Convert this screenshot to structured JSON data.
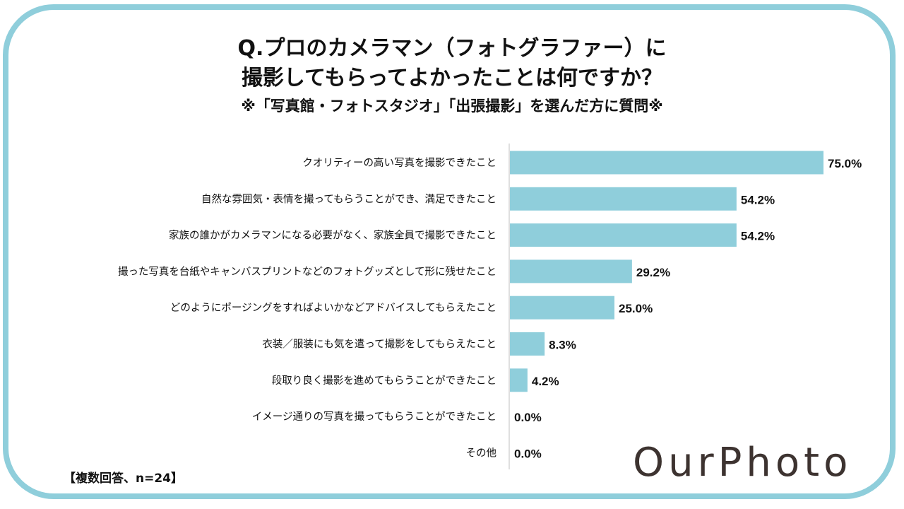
{
  "title_line1": "Q.プロのカメラマン（フォトグラファー）に",
  "title_line2": "撮影してもらってよかったことは何ですか？",
  "subtitle": "※「写真館・フォトスタジオ」「出張撮影」を選んだ方に質問※",
  "footnote": "【複数回答、n=24】",
  "logo_text": "OurPhoto",
  "colors": {
    "bar": "#8fcedb",
    "frame": "#8fcedb",
    "axis": "#bfbfbf",
    "text": "#111111",
    "logo": "#3d3330"
  },
  "chart_data": {
    "type": "bar",
    "orientation": "horizontal",
    "categories": [
      "クオリティーの高い写真を撮影できたこと",
      "自然な雰囲気・表情を撮ってもらうことができ、満足できたこと",
      "家族の誰かがカメラマンになる必要がなく、家族全員で撮影できたこと",
      "撮った写真を台紙やキャンバスプリントなどのフォトグッズとして形に残せたこと",
      "どのようにポージングをすればよいかなどアドバイスしてもらえたこと",
      "衣装／服装にも気を遣って撮影をしてもらえたこと",
      "段取り良く撮影を進めてもらうことができたこと",
      "イメージ通りの写真を撮ってもらうことができたこと",
      "その他"
    ],
    "values": [
      75.0,
      54.2,
      54.2,
      29.2,
      25.0,
      8.3,
      4.2,
      0.0,
      0.0
    ],
    "value_labels": [
      "75.0%",
      "54.2%",
      "54.2%",
      "29.2%",
      "25.0%",
      "8.3%",
      "4.2%",
      "0.0%",
      "0.0%"
    ],
    "xlim": [
      0,
      75
    ],
    "grid": false
  }
}
